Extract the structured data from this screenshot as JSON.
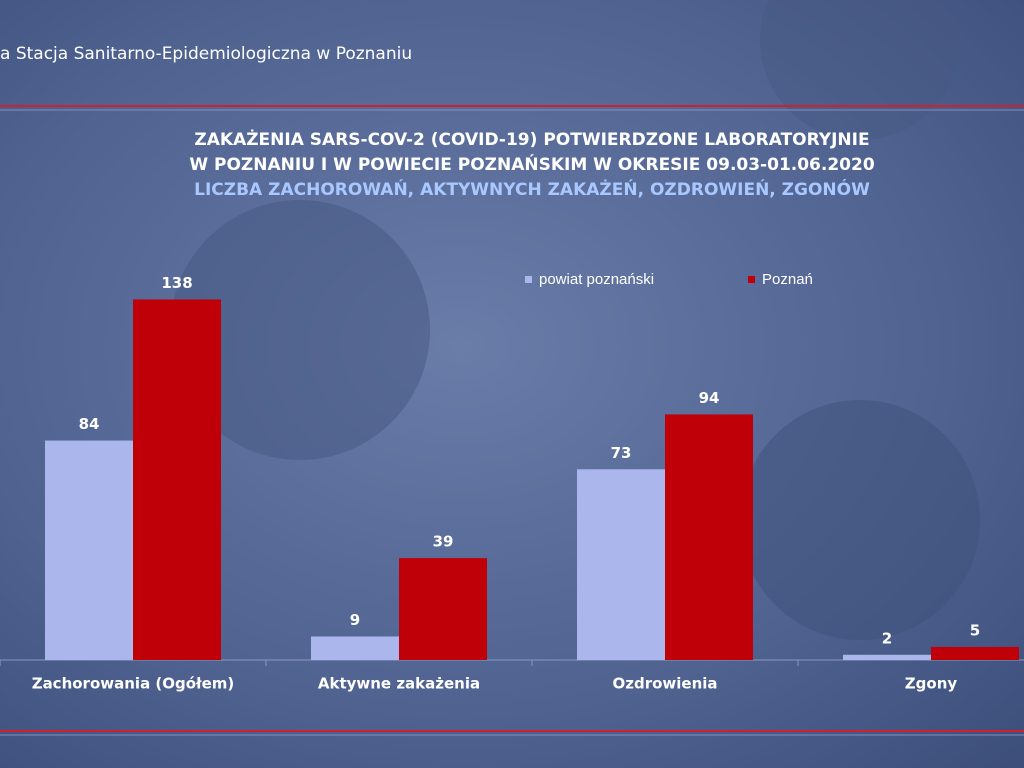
{
  "chart_data": {
    "type": "bar",
    "header": "a Stacja Sanitarno-Epidemiologiczna w Poznaniu",
    "title": [
      "ZAKAŻENIA SARS-COV-2 (COVID-19) POTWIERDZONE LABORATORYJNIE",
      "W POZNANIU I W POWIECIE POZNAŃSKIM W OKRESIE 09.03-01.06.2020",
      "LICZBA ZACHOROWAŃ, AKTYWNYCH ZAKAŻEŃ, OZDROWIEŃ, ZGONÓW"
    ],
    "categories": [
      "Zachorowania (Ogółem)",
      "Aktywne zakażenia",
      "Ozdrowienia",
      "Zgony"
    ],
    "series": [
      {
        "name": "powiat poznański",
        "color": "#aab6ec",
        "values": [
          84,
          9,
          73,
          2
        ]
      },
      {
        "name": "Poznań",
        "color": "#c00008",
        "values": [
          138,
          39,
          94,
          5
        ]
      }
    ],
    "ylim": [
      0,
      160
    ]
  }
}
